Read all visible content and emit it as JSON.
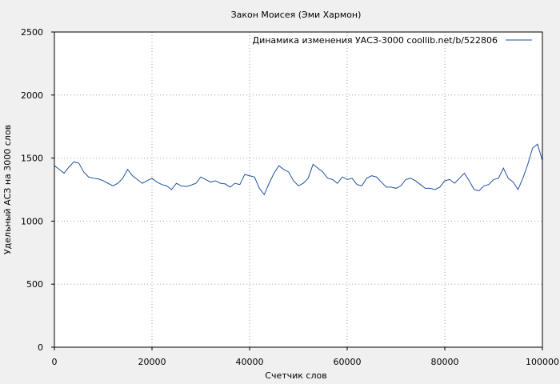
{
  "chart_data": {
    "type": "line",
    "title": "Закон Моисея (Эми Хармон)",
    "xlabel": "Счетчик слов",
    "ylabel": "Удельный АСЗ на 3000 слов",
    "xlim": [
      0,
      100000
    ],
    "ylim": [
      0,
      2500
    ],
    "x_ticks": [
      0,
      20000,
      40000,
      60000,
      80000,
      100000
    ],
    "x_tick_labels": [
      "0",
      "20000",
      "40000",
      "60000",
      "80000",
      "100000"
    ],
    "y_ticks": [
      0,
      500,
      1000,
      1500,
      2000,
      2500
    ],
    "y_tick_labels": [
      "0",
      "500",
      "1000",
      "1500",
      "2000",
      "2500"
    ],
    "grid": true,
    "legend_position": "top-right",
    "series": [
      {
        "name": "Динамика изменения УАСЗ-3000  coollib.net/b/522806",
        "color": "#1f4f9f",
        "x": [
          0,
          1000,
          2000,
          3000,
          4000,
          5000,
          6000,
          7000,
          8000,
          9000,
          10000,
          11000,
          12000,
          13000,
          14000,
          15000,
          16000,
          17000,
          18000,
          19000,
          20000,
          21000,
          22000,
          23000,
          24000,
          25000,
          26000,
          27000,
          28000,
          29000,
          30000,
          31000,
          32000,
          33000,
          34000,
          35000,
          36000,
          37000,
          38000,
          39000,
          40000,
          41000,
          42000,
          43000,
          44000,
          45000,
          46000,
          47000,
          48000,
          49000,
          50000,
          51000,
          52000,
          53000,
          54000,
          55000,
          56000,
          57000,
          58000,
          59000,
          60000,
          61000,
          62000,
          63000,
          64000,
          65000,
          66000,
          67000,
          68000,
          69000,
          70000,
          71000,
          72000,
          73000,
          74000,
          75000,
          76000,
          77000,
          78000,
          79000,
          80000,
          81000,
          82000,
          83000,
          84000,
          85000,
          86000,
          87000,
          88000,
          89000,
          90000,
          91000,
          92000,
          93000,
          94000,
          95000,
          96000,
          97000,
          98000,
          99000,
          100000
        ],
        "y": [
          1440,
          1410,
          1380,
          1430,
          1470,
          1460,
          1390,
          1350,
          1340,
          1335,
          1320,
          1300,
          1280,
          1300,
          1340,
          1410,
          1360,
          1330,
          1300,
          1320,
          1340,
          1310,
          1290,
          1280,
          1250,
          1300,
          1280,
          1275,
          1285,
          1300,
          1350,
          1330,
          1310,
          1320,
          1300,
          1295,
          1270,
          1300,
          1290,
          1370,
          1360,
          1350,
          1260,
          1210,
          1300,
          1380,
          1440,
          1410,
          1390,
          1320,
          1280,
          1300,
          1340,
          1450,
          1420,
          1390,
          1340,
          1330,
          1300,
          1350,
          1330,
          1340,
          1290,
          1280,
          1340,
          1360,
          1350,
          1310,
          1270,
          1270,
          1260,
          1280,
          1330,
          1340,
          1320,
          1290,
          1260,
          1260,
          1250,
          1270,
          1320,
          1330,
          1300,
          1340,
          1380,
          1320,
          1250,
          1240,
          1280,
          1290,
          1330,
          1340,
          1420,
          1340,
          1310,
          1250,
          1340,
          1450,
          1580,
          1610,
          1480
        ]
      }
    ]
  }
}
